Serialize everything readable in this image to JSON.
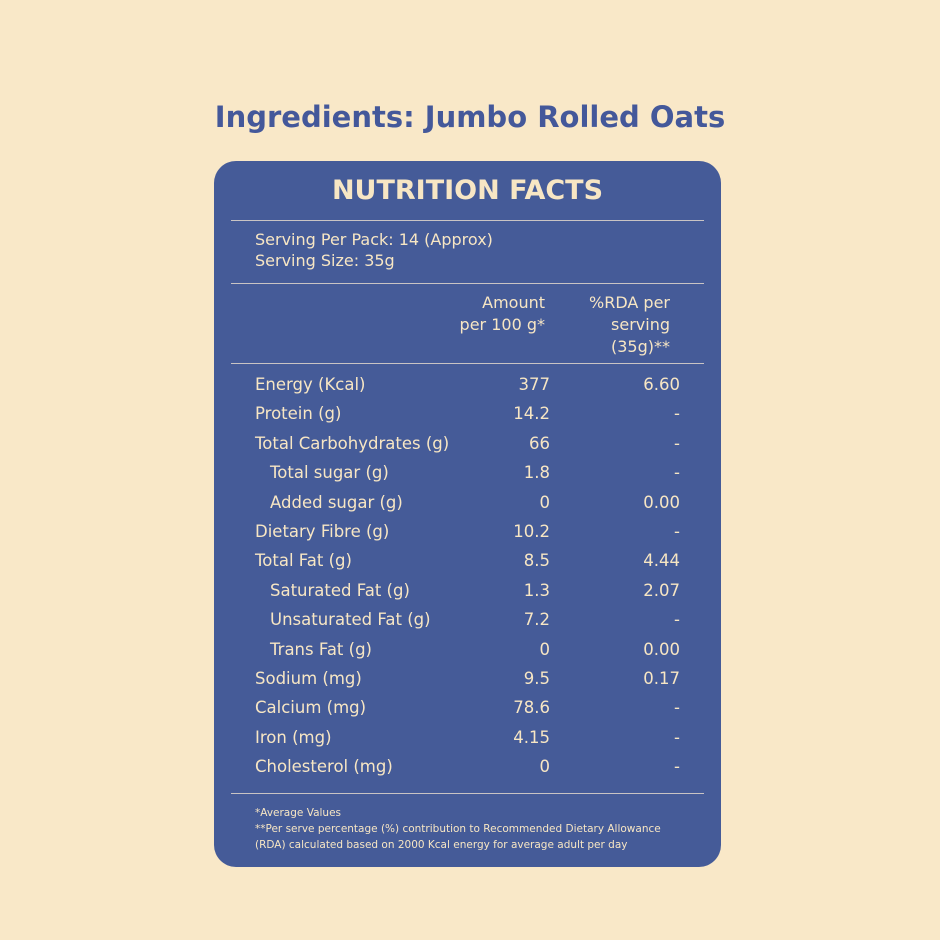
{
  "title": "Ingredients: Jumbo Rolled Oats",
  "panel": {
    "heading": "NUTRITION FACTS",
    "serving": [
      "Serving Per Pack: 14 (Approx)",
      "Serving Size: 35g"
    ],
    "columns": {
      "amount": [
        "Amount",
        "per 100 g*"
      ],
      "rda": [
        "%RDA per",
        "serving",
        "(35g)**"
      ]
    },
    "rows": [
      {
        "name": "Energy (Kcal)",
        "amount": "377",
        "rda": "6.60",
        "indent": false
      },
      {
        "name": "Protein (g)",
        "amount": "14.2",
        "rda": "-",
        "indent": false
      },
      {
        "name": "Total Carbohydrates (g)",
        "amount": "66",
        "rda": "-",
        "indent": false
      },
      {
        "name": "Total sugar (g)",
        "amount": "1.8",
        "rda": "-",
        "indent": true
      },
      {
        "name": "Added sugar (g)",
        "amount": "0",
        "rda": "0.00",
        "indent": true
      },
      {
        "name": "Dietary Fibre (g)",
        "amount": "10.2",
        "rda": "-",
        "indent": false
      },
      {
        "name": "Total Fat (g)",
        "amount": "8.5",
        "rda": "4.44",
        "indent": false
      },
      {
        "name": "Saturated Fat (g)",
        "amount": "1.3",
        "rda": "2.07",
        "indent": true
      },
      {
        "name": "Unsaturated Fat (g)",
        "amount": "7.2",
        "rda": "-",
        "indent": true
      },
      {
        "name": "Trans Fat (g)",
        "amount": "0",
        "rda": "0.00",
        "indent": true
      },
      {
        "name": "Sodium (mg)",
        "amount": "9.5",
        "rda": "0.17",
        "indent": false
      },
      {
        "name": "Calcium (mg)",
        "amount": "78.6",
        "rda": "-",
        "indent": false
      },
      {
        "name": "Iron (mg)",
        "amount": "4.15",
        "rda": "-",
        "indent": false
      },
      {
        "name": "Cholesterol (mg)",
        "amount": "0",
        "rda": "-",
        "indent": false
      }
    ],
    "footnotes": [
      "*Average Values",
      "**Per serve percentage (%) contribution to Recommended Dietary Allowance",
      "(RDA) calculated based on 2000 Kcal energy for average adult per day"
    ]
  }
}
